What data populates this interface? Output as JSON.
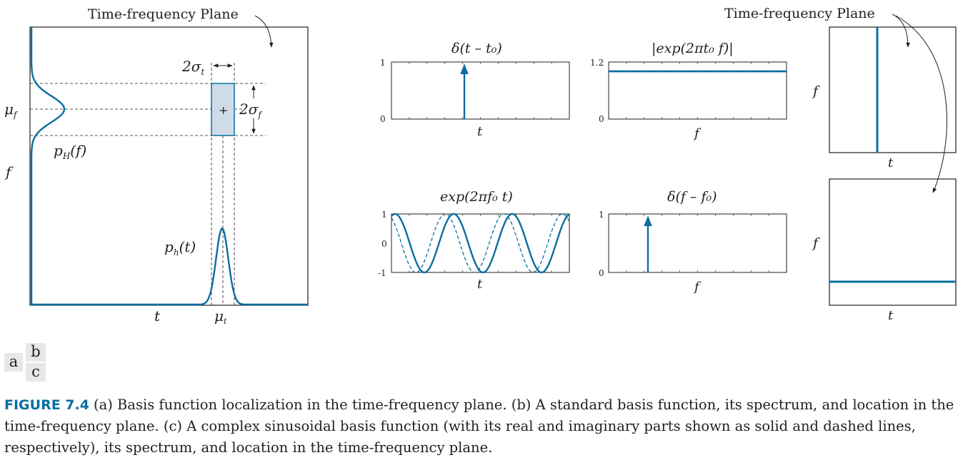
{
  "panel_a": {
    "title": "Time-frequency Plane",
    "label_sigma_t": "2σ",
    "label_sigma_t_sub": "t",
    "label_sigma_f": "2σ",
    "label_sigma_f_sub": "f",
    "label_mu_f": "μ",
    "label_mu_f_sub": "f",
    "label_pH": "p",
    "label_pH_sub": "H",
    "label_pH_arg": "(f)",
    "label_ph": "p",
    "label_ph_sub": "h",
    "label_ph_arg": "(t)",
    "axis_f": "f",
    "axis_t": "t",
    "label_mu_t": "μ",
    "label_mu_t_sub": "t"
  },
  "panel_b": {
    "plot1_title": "δ(t – t₀)",
    "plot1_xlabel": "t",
    "plot1_ticks": [
      "1",
      "0"
    ],
    "plot2_title": "|exp(2πt₀ f)|",
    "plot2_xlabel": "f",
    "plot2_ticks": [
      "1.2",
      "0"
    ],
    "tf_title": "Time-frequency Plane",
    "tf1_ylabel": "f",
    "tf1_xlabel": "t"
  },
  "panel_c": {
    "plot1_title": "exp(2πf₀ t)",
    "plot1_xlabel": "t",
    "plot1_ticks": [
      "1",
      "0",
      "-1"
    ],
    "plot2_title": "δ(f – f₀)",
    "plot2_xlabel": "f",
    "plot2_ticks": [
      "1",
      "0"
    ],
    "tf2_ylabel": "f",
    "tf2_xlabel": "t"
  },
  "panel_labels": {
    "a": "a",
    "b": "b",
    "c": "c"
  },
  "caption": {
    "label": "FIGURE 7.4",
    "text": "(a) Basis function localization in the time-frequency plane. (b) A standard basis function, its spectrum, and location in the time-frequency plane. (c) A complex sinusoidal basis function (with its real and imaginary parts shown as solid and dashed lines, respectively), its spectrum, and location in the time-frequency plane."
  },
  "colors": {
    "curve": "#0a6e9f",
    "box_fill": "#cfdbe8",
    "axes": "#231f20"
  }
}
